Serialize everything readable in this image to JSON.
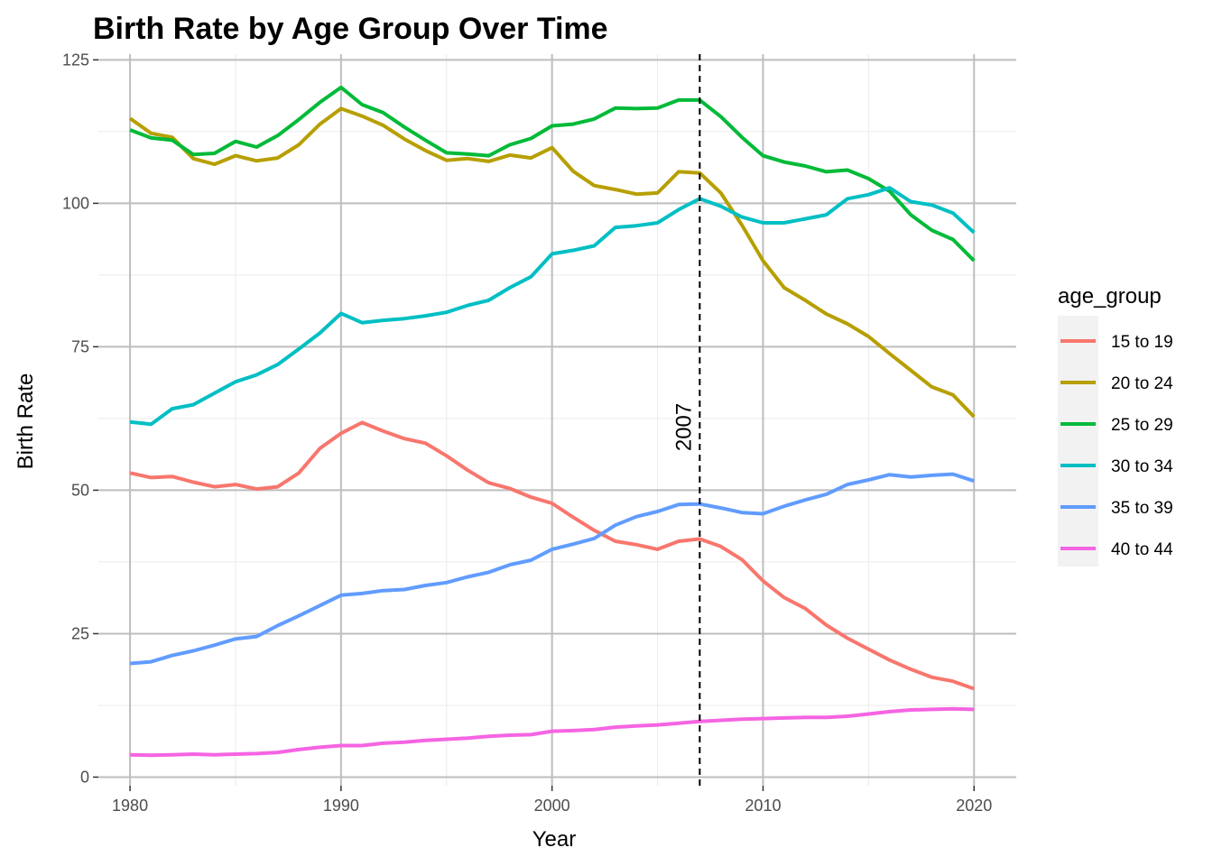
{
  "chart_data": {
    "type": "line",
    "title": "Birth Rate by Age Group Over Time",
    "xlabel": "Year",
    "ylabel": "Birth Rate",
    "xlim": [
      1978.5,
      2022
    ],
    "ylim": [
      -1.5,
      126
    ],
    "xticks": [
      1980,
      1990,
      2000,
      2010,
      2020
    ],
    "yticks": [
      0,
      25,
      50,
      75,
      100,
      125
    ],
    "grid": true,
    "legend": {
      "title": "age_group",
      "position": "right"
    },
    "vline": {
      "x": 2007,
      "label": "2007",
      "style": "dashed"
    },
    "x": [
      1980,
      1981,
      1982,
      1983,
      1984,
      1985,
      1986,
      1987,
      1988,
      1989,
      1990,
      1991,
      1992,
      1993,
      1994,
      1995,
      1996,
      1997,
      1998,
      1999,
      2000,
      2001,
      2002,
      2003,
      2004,
      2005,
      2006,
      2007,
      2008,
      2009,
      2010,
      2011,
      2012,
      2013,
      2014,
      2015,
      2016,
      2017,
      2018,
      2019,
      2020
    ],
    "series": [
      {
        "name": "15 to 19",
        "color": "#F8766D",
        "values": [
          53.0,
          52.2,
          52.4,
          51.4,
          50.6,
          51.0,
          50.2,
          50.6,
          53.0,
          57.3,
          59.9,
          61.8,
          60.3,
          59.0,
          58.2,
          56.0,
          53.5,
          51.3,
          50.3,
          48.8,
          47.7,
          45.3,
          43.0,
          41.1,
          40.5,
          39.7,
          41.1,
          41.5,
          40.2,
          37.9,
          34.2,
          31.3,
          29.4,
          26.5,
          24.2,
          22.3,
          20.4,
          18.8,
          17.4,
          16.7,
          15.4
        ]
      },
      {
        "name": "20 to 24",
        "color": "#B79F00",
        "values": [
          114.8,
          112.2,
          111.5,
          107.8,
          106.8,
          108.3,
          107.4,
          107.9,
          110.2,
          113.8,
          116.5,
          115.2,
          113.6,
          111.2,
          109.2,
          107.5,
          107.8,
          107.3,
          108.4,
          107.9,
          109.7,
          105.6,
          103.1,
          102.4,
          101.6,
          101.8,
          105.5,
          105.3,
          101.8,
          96.2,
          90.0,
          85.3,
          83.1,
          80.7,
          79.0,
          76.8,
          73.8,
          70.9,
          68.0,
          66.6,
          62.8
        ]
      },
      {
        "name": "25 to 29",
        "color": "#00BA38",
        "values": [
          112.8,
          111.4,
          111.0,
          108.5,
          108.7,
          110.8,
          109.8,
          111.8,
          114.6,
          117.6,
          120.2,
          117.2,
          115.8,
          113.3,
          111.0,
          108.8,
          108.6,
          108.3,
          110.2,
          111.3,
          113.5,
          113.8,
          114.7,
          116.6,
          116.5,
          116.6,
          118.0,
          118.0,
          115.1,
          111.5,
          108.3,
          107.2,
          106.5,
          105.5,
          105.8,
          104.3,
          102.1,
          98.0,
          95.3,
          93.7,
          90.0
        ]
      },
      {
        "name": "30 to 34",
        "color": "#00BFC4",
        "values": [
          61.9,
          61.5,
          64.2,
          64.9,
          66.9,
          68.9,
          70.1,
          71.9,
          74.6,
          77.4,
          80.8,
          79.2,
          79.6,
          79.9,
          80.4,
          81.0,
          82.2,
          83.1,
          85.3,
          87.2,
          91.2,
          91.8,
          92.6,
          95.8,
          96.1,
          96.6,
          98.9,
          100.8,
          99.5,
          97.6,
          96.6,
          96.6,
          97.3,
          98.0,
          100.8,
          101.5,
          102.7,
          100.3,
          99.7,
          98.3,
          94.9
        ]
      },
      {
        "name": "35 to 39",
        "color": "#619CFF",
        "values": [
          19.8,
          20.1,
          21.2,
          22.0,
          23.0,
          24.1,
          24.5,
          26.4,
          28.1,
          29.9,
          31.7,
          32.0,
          32.5,
          32.7,
          33.4,
          33.9,
          34.9,
          35.7,
          37.0,
          37.8,
          39.7,
          40.6,
          41.6,
          43.9,
          45.4,
          46.3,
          47.5,
          47.6,
          46.9,
          46.1,
          45.9,
          47.2,
          48.3,
          49.3,
          51.0,
          51.8,
          52.7,
          52.3,
          52.6,
          52.8,
          51.6
        ]
      },
      {
        "name": "40 to 44",
        "color": "#F564E3",
        "values": [
          3.9,
          3.8,
          3.9,
          4.0,
          3.9,
          4.0,
          4.1,
          4.3,
          4.8,
          5.2,
          5.5,
          5.5,
          5.9,
          6.1,
          6.4,
          6.6,
          6.8,
          7.1,
          7.3,
          7.4,
          8.0,
          8.1,
          8.3,
          8.7,
          8.9,
          9.1,
          9.4,
          9.7,
          9.9,
          10.1,
          10.2,
          10.3,
          10.4,
          10.4,
          10.6,
          11.0,
          11.4,
          11.7,
          11.8,
          11.9,
          11.8
        ]
      }
    ]
  }
}
